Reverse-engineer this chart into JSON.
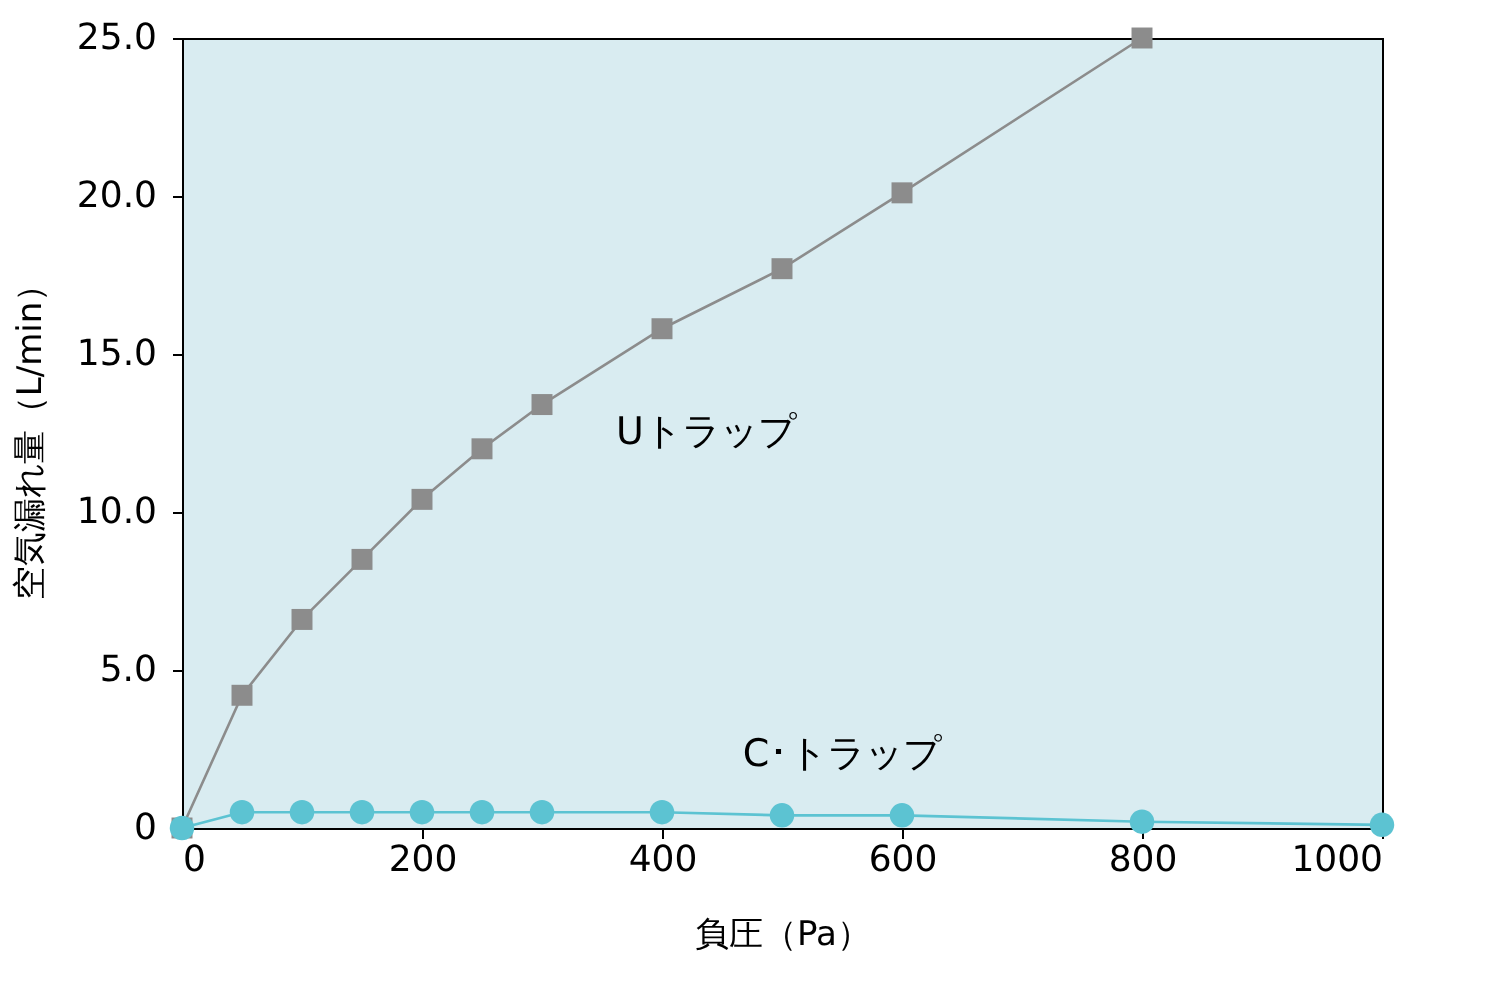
{
  "chart_data": {
    "type": "line",
    "xlabel": "負圧（Pa）",
    "ylabel": "空気漏れ量（L/min）",
    "xlim": [
      0,
      1000
    ],
    "xticks": [
      0,
      200,
      400,
      600,
      800,
      {
        "value": 1000,
        "label": "1000"
      }
    ],
    "ylim": [
      0,
      25
    ],
    "yticks": [
      0,
      {
        "value": 5,
        "label": "5.0"
      },
      {
        "value": 10,
        "label": "10.0"
      },
      {
        "value": 15,
        "label": "15.0"
      },
      {
        "value": 20,
        "label": "20.0"
      },
      {
        "value": 25,
        "label": "25.0"
      }
    ],
    "grid": false,
    "series": [
      {
        "name": "Uトラップ",
        "color": "#8c8c8c",
        "marker": "square",
        "x": [
          0,
          50,
          100,
          150,
          200,
          250,
          300,
          400,
          500,
          600,
          800
        ],
        "values": [
          0,
          4.2,
          6.6,
          8.5,
          10.4,
          12.0,
          13.4,
          15.8,
          17.7,
          20.1,
          25.0
        ]
      },
      {
        "name": "C･トラップ",
        "color": "#5cc3d2",
        "marker": "circle",
        "x": [
          0,
          50,
          100,
          150,
          200,
          250,
          300,
          400,
          500,
          600,
          800,
          1000
        ],
        "values": [
          0,
          0.5,
          0.5,
          0.5,
          0.5,
          0.5,
          0.5,
          0.5,
          0.4,
          0.4,
          0.2,
          0.1
        ]
      }
    ]
  }
}
